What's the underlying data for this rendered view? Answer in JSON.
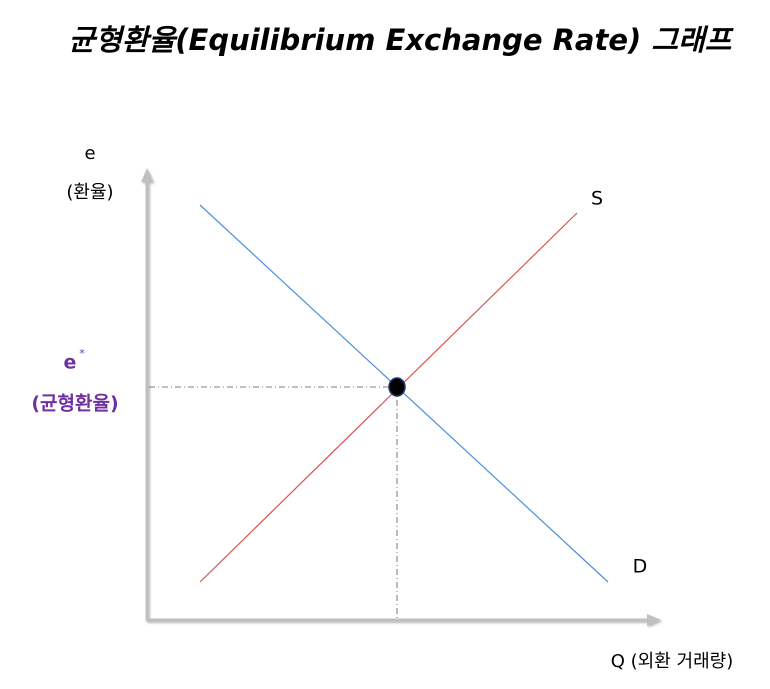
{
  "title": "균형환율(Equilibrium Exchange Rate) 그래프",
  "y_axis": {
    "label": "e",
    "sublabel": "(환율)"
  },
  "x_axis": {
    "label": "Q (외환 거래량)"
  },
  "curves": {
    "supply": "S",
    "demand": "D"
  },
  "equilibrium": {
    "symbol": "e",
    "superscript": "*",
    "label": "(균형환율)"
  }
}
